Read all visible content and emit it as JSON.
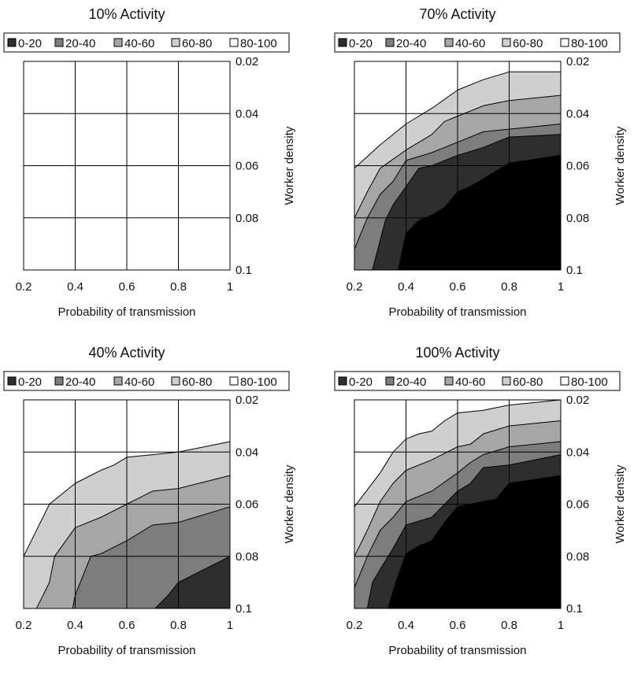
{
  "legend_labels": [
    "0-20",
    "20-40",
    "40-60",
    "60-80",
    "80-100"
  ],
  "colors": {
    "band_0_20": "#2e2e2e",
    "band_20_40": "#7d7d7d",
    "band_40_60": "#a6a6a6",
    "band_60_80": "#cfcfcf",
    "band_80_100": "#ffffff",
    "grid": "#000000"
  },
  "chart_data": [
    {
      "type": "area",
      "title": "10% Activity",
      "xlabel": "Probability of transmission",
      "ylabel": "Worker density",
      "xlim": [
        0.2,
        1
      ],
      "ylim": [
        0.1,
        0.02
      ],
      "y_axis_inverted": true,
      "y_axis_side": "right",
      "xticks": [
        "0.2",
        "0.4",
        "0.6",
        "0.8",
        "1"
      ],
      "yticks": [
        "0.02",
        "0.04",
        "0.06",
        "0.08",
        "0.1"
      ],
      "grid": true,
      "legend": [
        "0-20",
        "20-40",
        "40-60",
        "60-80",
        "80-100"
      ],
      "legend_placement": "top",
      "boundaries": []
    },
    {
      "type": "area",
      "title": "70% Activity",
      "xlabel": "Probability of transmission",
      "ylabel": "Worker density",
      "xlim": [
        0.2,
        1
      ],
      "ylim": [
        0.1,
        0.02
      ],
      "y_axis_inverted": true,
      "y_axis_side": "right",
      "xticks": [
        "0.2",
        "0.4",
        "0.6",
        "0.8",
        "1"
      ],
      "yticks": [
        "0.02",
        "0.04",
        "0.06",
        "0.08",
        "0.1"
      ],
      "grid": true,
      "legend": [
        "0-20",
        "20-40",
        "40-60",
        "60-80",
        "80-100"
      ],
      "legend_placement": "top",
      "boundaries": [
        {
          "name": "80-100 / 60-80",
          "points": [
            [
              0.2,
              0.061
            ],
            [
              0.3,
              0.052
            ],
            [
              0.4,
              0.044
            ],
            [
              0.5,
              0.038
            ],
            [
              0.6,
              0.031
            ],
            [
              0.7,
              0.027
            ],
            [
              0.8,
              0.024
            ],
            [
              1.0,
              0.024
            ]
          ]
        },
        {
          "name": "60-80 / 40-60",
          "points": [
            [
              0.2,
              0.08
            ],
            [
              0.25,
              0.07
            ],
            [
              0.3,
              0.061
            ],
            [
              0.4,
              0.054
            ],
            [
              0.5,
              0.048
            ],
            [
              0.55,
              0.043
            ],
            [
              0.6,
              0.041
            ],
            [
              0.7,
              0.037
            ],
            [
              0.8,
              0.035
            ],
            [
              1.0,
              0.033
            ]
          ]
        },
        {
          "name": "40-60 / 20-40",
          "points": [
            [
              0.2,
              0.092
            ],
            [
              0.25,
              0.08
            ],
            [
              0.3,
              0.071
            ],
            [
              0.35,
              0.066
            ],
            [
              0.4,
              0.058
            ],
            [
              0.5,
              0.055
            ],
            [
              0.6,
              0.051
            ],
            [
              0.7,
              0.047
            ],
            [
              0.8,
              0.046
            ],
            [
              1.0,
              0.044
            ]
          ]
        },
        {
          "name": "20-40 / 0-20",
          "points": [
            [
              0.27,
              0.1
            ],
            [
              0.32,
              0.081
            ],
            [
              0.35,
              0.075
            ],
            [
              0.4,
              0.068
            ],
            [
              0.45,
              0.061
            ],
            [
              0.5,
              0.06
            ],
            [
              0.6,
              0.056
            ],
            [
              0.7,
              0.053
            ],
            [
              0.8,
              0.049
            ],
            [
              1.0,
              0.048
            ]
          ]
        },
        {
          "name": "0-20 lower",
          "points": [
            [
              0.37,
              0.1
            ],
            [
              0.4,
              0.086
            ],
            [
              0.45,
              0.081
            ],
            [
              0.5,
              0.079
            ],
            [
              0.55,
              0.076
            ],
            [
              0.6,
              0.07
            ],
            [
              0.65,
              0.068
            ],
            [
              0.7,
              0.065
            ],
            [
              0.8,
              0.059
            ],
            [
              1.0,
              0.056
            ]
          ]
        }
      ]
    },
    {
      "type": "area",
      "title": "40% Activity",
      "xlabel": "Probability of transmission",
      "ylabel": "Worker density",
      "xlim": [
        0.2,
        1
      ],
      "ylim": [
        0.1,
        0.02
      ],
      "y_axis_inverted": true,
      "y_axis_side": "right",
      "xticks": [
        "0.2",
        "0.4",
        "0.6",
        "0.8",
        "1"
      ],
      "yticks": [
        "0.02",
        "0.04",
        "0.06",
        "0.08",
        "0.1"
      ],
      "grid": true,
      "legend": [
        "0-20",
        "20-40",
        "40-60",
        "60-80",
        "80-100"
      ],
      "legend_placement": "top",
      "boundaries": [
        {
          "name": "80-100 / 60-80",
          "points": [
            [
              0.2,
              0.08
            ],
            [
              0.3,
              0.06
            ],
            [
              0.4,
              0.052
            ],
            [
              0.5,
              0.047
            ],
            [
              0.55,
              0.045
            ],
            [
              0.6,
              0.042
            ],
            [
              0.7,
              0.041
            ],
            [
              0.8,
              0.04
            ],
            [
              1.0,
              0.036
            ]
          ]
        },
        {
          "name": "60-80 / 40-60",
          "points": [
            [
              0.25,
              0.1
            ],
            [
              0.3,
              0.09
            ],
            [
              0.32,
              0.08
            ],
            [
              0.4,
              0.069
            ],
            [
              0.5,
              0.065
            ],
            [
              0.6,
              0.06
            ],
            [
              0.7,
              0.055
            ],
            [
              0.8,
              0.054
            ],
            [
              1.0,
              0.049
            ]
          ]
        },
        {
          "name": "40-60 / 20-40",
          "points": [
            [
              0.39,
              0.1
            ],
            [
              0.4,
              0.095
            ],
            [
              0.42,
              0.09
            ],
            [
              0.46,
              0.08
            ],
            [
              0.5,
              0.079
            ],
            [
              0.6,
              0.074
            ],
            [
              0.7,
              0.068
            ],
            [
              0.8,
              0.067
            ],
            [
              1.0,
              0.061
            ]
          ]
        },
        {
          "name": "20-40 / 0-20",
          "points": [
            [
              0.71,
              0.1
            ],
            [
              0.76,
              0.095
            ],
            [
              0.8,
              0.09
            ],
            [
              0.9,
              0.085
            ],
            [
              1.0,
              0.08
            ]
          ]
        }
      ]
    },
    {
      "type": "area",
      "title": "100% Activity",
      "xlabel": "Probability of transmission",
      "ylabel": "Worker density",
      "xlim": [
        0.2,
        1
      ],
      "ylim": [
        0.1,
        0.02
      ],
      "y_axis_inverted": true,
      "y_axis_side": "right",
      "xticks": [
        "0.2",
        "0.4",
        "0.6",
        "0.8",
        "1"
      ],
      "yticks": [
        "0.02",
        "0.04",
        "0.06",
        "0.08",
        "0.1"
      ],
      "grid": true,
      "legend": [
        "0-20",
        "20-40",
        "40-60",
        "60-80",
        "80-100"
      ],
      "legend_placement": "top",
      "boundaries": [
        {
          "name": "80-100 / 60-80",
          "points": [
            [
              0.2,
              0.061
            ],
            [
              0.3,
              0.048
            ],
            [
              0.35,
              0.04
            ],
            [
              0.4,
              0.035
            ],
            [
              0.45,
              0.033
            ],
            [
              0.5,
              0.032
            ],
            [
              0.55,
              0.028
            ],
            [
              0.6,
              0.025
            ],
            [
              0.7,
              0.024
            ],
            [
              0.75,
              0.023
            ],
            [
              0.8,
              0.022
            ],
            [
              1.0,
              0.02
            ]
          ]
        },
        {
          "name": "60-80 / 40-60",
          "points": [
            [
              0.2,
              0.08
            ],
            [
              0.25,
              0.07
            ],
            [
              0.3,
              0.059
            ],
            [
              0.35,
              0.052
            ],
            [
              0.4,
              0.047
            ],
            [
              0.5,
              0.043
            ],
            [
              0.6,
              0.038
            ],
            [
              0.65,
              0.037
            ],
            [
              0.7,
              0.033
            ],
            [
              0.8,
              0.03
            ],
            [
              1.0,
              0.028
            ]
          ]
        },
        {
          "name": "40-60 / 20-40",
          "points": [
            [
              0.2,
              0.092
            ],
            [
              0.25,
              0.08
            ],
            [
              0.3,
              0.07
            ],
            [
              0.35,
              0.065
            ],
            [
              0.4,
              0.059
            ],
            [
              0.5,
              0.055
            ],
            [
              0.6,
              0.048
            ],
            [
              0.65,
              0.044
            ],
            [
              0.7,
              0.041
            ],
            [
              0.8,
              0.038
            ],
            [
              1.0,
              0.036
            ]
          ]
        },
        {
          "name": "20-40 / 0-20",
          "points": [
            [
              0.2,
              0.1
            ],
            [
              0.25,
              0.1
            ],
            [
              0.27,
              0.09
            ],
            [
              0.3,
              0.085
            ],
            [
              0.35,
              0.077
            ],
            [
              0.4,
              0.068
            ],
            [
              0.5,
              0.065
            ],
            [
              0.55,
              0.06
            ],
            [
              0.6,
              0.055
            ],
            [
              0.65,
              0.052
            ],
            [
              0.7,
              0.046
            ],
            [
              0.8,
              0.045
            ],
            [
              1.0,
              0.041
            ]
          ]
        },
        {
          "name": "0-20 lower",
          "points": [
            [
              0.33,
              0.1
            ],
            [
              0.36,
              0.09
            ],
            [
              0.4,
              0.079
            ],
            [
              0.45,
              0.076
            ],
            [
              0.5,
              0.074
            ],
            [
              0.55,
              0.067
            ],
            [
              0.6,
              0.061
            ],
            [
              0.7,
              0.059
            ],
            [
              0.75,
              0.058
            ],
            [
              0.8,
              0.052
            ],
            [
              1.0,
              0.049
            ]
          ]
        }
      ]
    }
  ]
}
